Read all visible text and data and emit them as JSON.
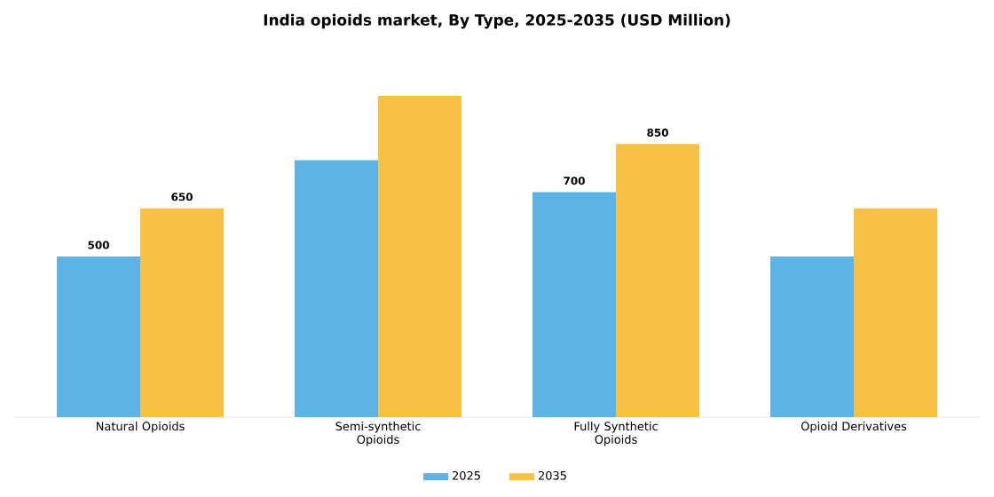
{
  "chart_data": {
    "type": "bar",
    "title": "India opioids market, By Type, 2025-2035 (USD Million)",
    "categories": [
      "Natural Opioids",
      "Semi-synthetic Opioids",
      "Fully Synthetic Opioids",
      "Opioid Derivatives"
    ],
    "series": [
      {
        "name": "2025",
        "color": "#5db3e6",
        "values": [
          500,
          800,
          700,
          500
        ],
        "value_labels": [
          "500",
          null,
          "700",
          null
        ]
      },
      {
        "name": "2035",
        "color": "#f7c244",
        "values": [
          650,
          1000,
          850,
          650
        ],
        "value_labels": [
          "650",
          null,
          "850",
          null
        ]
      }
    ],
    "legend": "bottom"
  }
}
